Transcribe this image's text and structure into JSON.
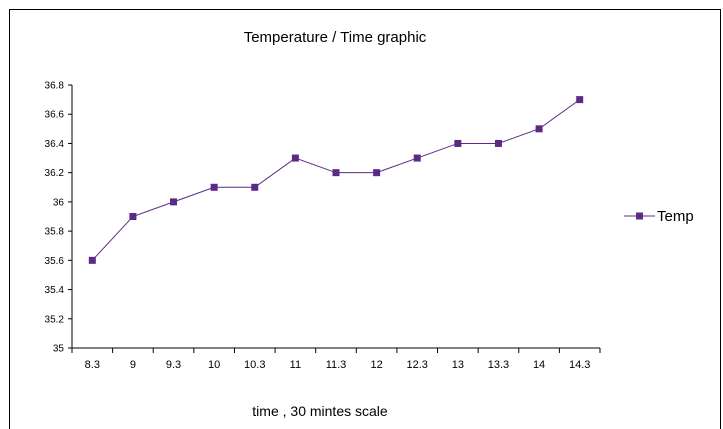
{
  "chart_data": {
    "type": "line",
    "title": "Temperature / Time graphic",
    "xlabel": "time , 30 mintes scale",
    "ylabel": "",
    "categories": [
      "8.3",
      "9",
      "9.3",
      "10",
      "10.3",
      "11",
      "11.3",
      "12",
      "12.3",
      "13",
      "13.3",
      "14",
      "14.3"
    ],
    "series": [
      {
        "name": "Temp",
        "values": [
          35.6,
          35.9,
          36.0,
          36.1,
          36.1,
          36.3,
          36.2,
          36.2,
          36.3,
          36.4,
          36.4,
          36.5,
          36.7
        ],
        "color": "#5b2a86"
      }
    ],
    "ylim": [
      35,
      36.8
    ],
    "yticks": [
      "35",
      "35.2",
      "35.4",
      "35.6",
      "35.8",
      "36",
      "36.2",
      "36.4",
      "36.6",
      "36.8"
    ],
    "grid": false,
    "legend_position": "right"
  }
}
